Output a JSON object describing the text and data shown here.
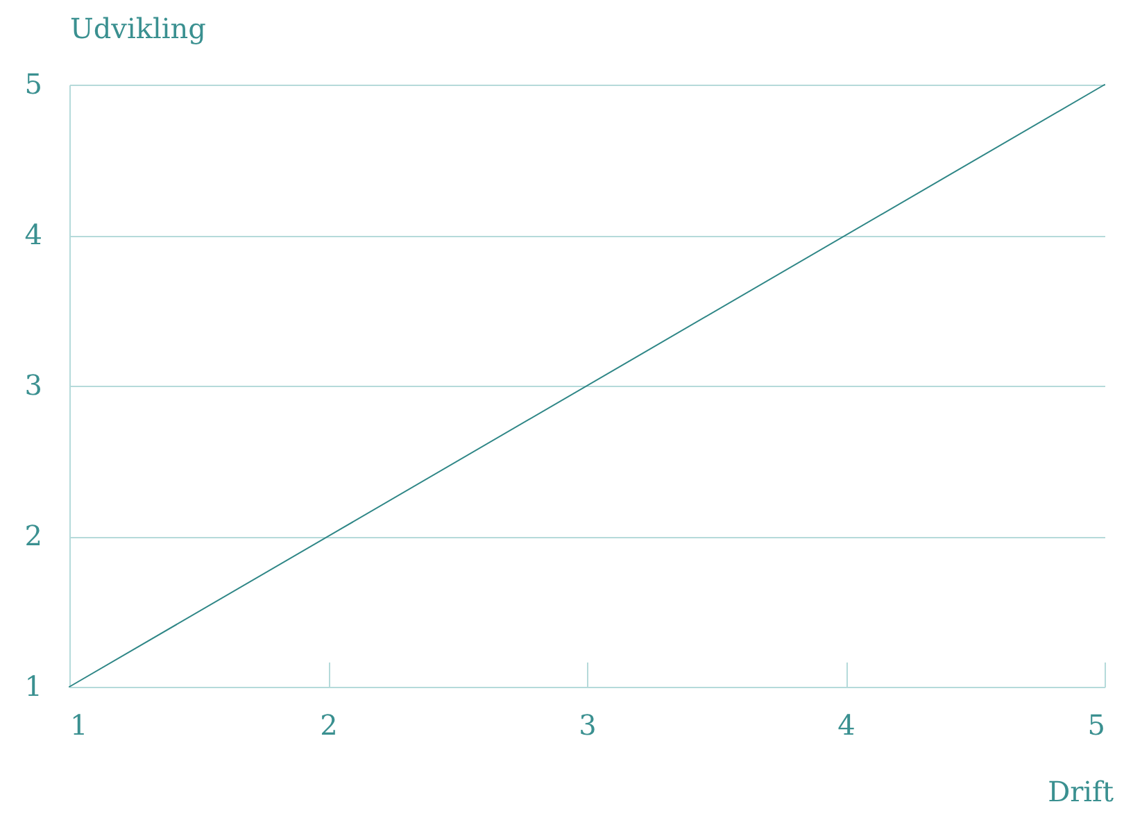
{
  "chart_data": {
    "type": "line",
    "xlabel": "Drift",
    "ylabel": "Udvikling",
    "x": [
      1,
      5
    ],
    "series": [
      {
        "color": "#2e8686",
        "values": [
          1,
          5
        ]
      }
    ],
    "xlim": [
      1,
      5
    ],
    "xticks": [
      1,
      2,
      3,
      4,
      5
    ],
    "ylim": [
      1,
      5
    ],
    "yticks": [
      1,
      2,
      3,
      4,
      5
    ],
    "grid": "y",
    "marker": "none",
    "line_style": "solid"
  }
}
